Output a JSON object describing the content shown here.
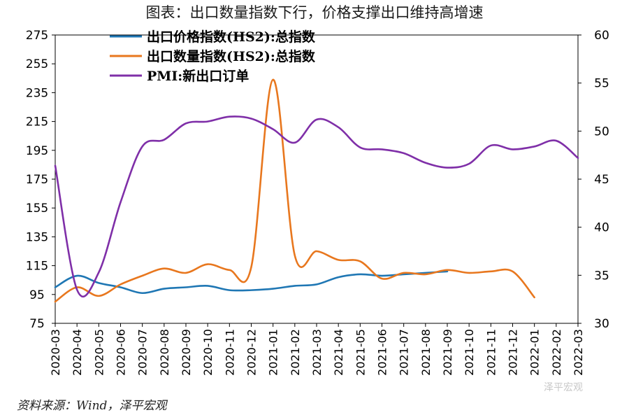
{
  "title": "图表：出口数量指数下行，价格支撑出口维持高增速",
  "source": "资料来源：Wind，泽平宏观",
  "watermark": "泽平宏观",
  "chart_data": {
    "type": "line",
    "categories": [
      "2020-03",
      "2020-04",
      "2020-05",
      "2020-06",
      "2020-07",
      "2020-08",
      "2020-09",
      "2020-10",
      "2020-11",
      "2020-12",
      "2021-01",
      "2021-02",
      "2021-03",
      "2021-04",
      "2021-05",
      "2021-06",
      "2021-07",
      "2021-08",
      "2021-09",
      "2021-10",
      "2021-11",
      "2021-12",
      "2022-01",
      "2022-02",
      "2022-03"
    ],
    "left_axis": {
      "min": 75,
      "max": 275,
      "ticks": [
        75,
        95,
        115,
        135,
        155,
        175,
        195,
        215,
        235,
        255,
        275
      ]
    },
    "right_axis": {
      "min": 30,
      "max": 60,
      "ticks": [
        30,
        35,
        40,
        45,
        50,
        55,
        60
      ]
    },
    "grid": false,
    "legend_placement": "top-left",
    "series": [
      {
        "name": "出口价格指数(HS2):总指数",
        "axis": "left",
        "color": "#1f77b4",
        "values": [
          100,
          108,
          103,
          100,
          96,
          99,
          100,
          101,
          98,
          98,
          99,
          101,
          102,
          107,
          109,
          108,
          109,
          110,
          111,
          null,
          null,
          null,
          null,
          null,
          null
        ]
      },
      {
        "name": "出口数量指数(HS2):总指数",
        "axis": "left",
        "color": "#e8771e",
        "values": [
          90,
          100,
          94,
          102,
          108,
          113,
          110,
          116,
          112,
          114,
          244,
          122,
          125,
          119,
          118,
          106,
          110,
          109,
          112,
          110,
          111,
          111,
          93,
          null,
          null
        ]
      },
      {
        "name": "PMI:新出口订单",
        "axis": "right",
        "color": "#7f2fa8",
        "values": [
          46.4,
          33.5,
          35.3,
          42.6,
          48.4,
          49.1,
          50.8,
          51.0,
          51.5,
          51.3,
          50.2,
          48.8,
          51.2,
          50.4,
          48.3,
          48.1,
          47.7,
          46.7,
          46.2,
          46.6,
          48.5,
          48.1,
          48.4,
          49.0,
          47.2
        ]
      }
    ]
  }
}
